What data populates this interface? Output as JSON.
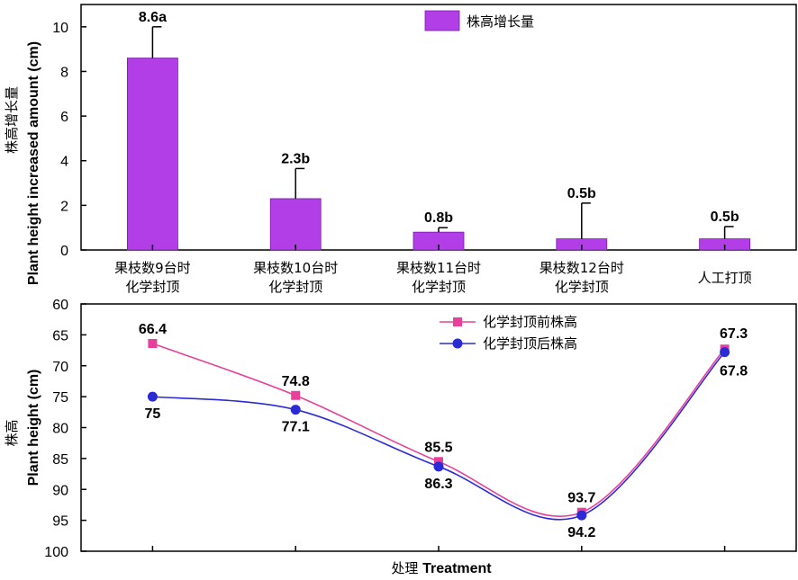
{
  "chart_data": [
    {
      "type": "bar",
      "name": "top",
      "categories": [
        [
          "果枝数9台时",
          "化学封顶"
        ],
        [
          "果枝数10台时",
          "化学封顶"
        ],
        [
          "果枝数11台时",
          "化学封顶"
        ],
        [
          "果枝数12台时",
          "化学封顶"
        ],
        [
          "人工打顶"
        ]
      ],
      "series": [
        {
          "name": "株高增长量",
          "values": [
            8.6,
            2.3,
            0.8,
            0.5,
            0.5
          ],
          "error_upper": [
            10.0,
            3.65,
            1.0,
            2.1,
            1.05
          ],
          "labels": [
            "8.6a",
            "2.3b",
            "0.8b",
            "0.5b",
            "0.5b"
          ],
          "color": "#b23ee8"
        }
      ],
      "ylabel_cn": "株高增长量",
      "ylabel": "Plant height increased amount (cm)",
      "ylim": [
        0,
        11
      ],
      "yticks": [
        0,
        2,
        4,
        6,
        8,
        10
      ],
      "legend": "top-center"
    },
    {
      "type": "line",
      "name": "bottom",
      "categories": [
        "果枝数9台时化学封顶",
        "果枝数10台时化学封顶",
        "果枝数11台时化学封顶",
        "果枝数12台时化学封顶",
        "人工打顶"
      ],
      "series": [
        {
          "name": "化学封顶前株高",
          "values": [
            66.4,
            74.8,
            85.5,
            93.7,
            67.3
          ],
          "labels": [
            "66.4",
            "74.8",
            "85.5",
            "93.7",
            "67.3"
          ],
          "color": "#e8409a",
          "marker": "square"
        },
        {
          "name": "化学封顶后株高",
          "values": [
            75,
            77.1,
            86.3,
            94.2,
            67.8
          ],
          "labels": [
            "75",
            "77.1",
            "86.3",
            "94.2",
            "67.8"
          ],
          "color": "#2a2ad8",
          "marker": "circle"
        }
      ],
      "ylabel_cn": "株高",
      "ylabel": "Plant height (cm)",
      "ylim": [
        60,
        100
      ],
      "y_inverted": true,
      "yticks": [
        60,
        65,
        70,
        75,
        80,
        85,
        90,
        95,
        100
      ],
      "xlabel_cn": "处理",
      "xlabel": "Treatment",
      "legend": "top-right"
    }
  ]
}
